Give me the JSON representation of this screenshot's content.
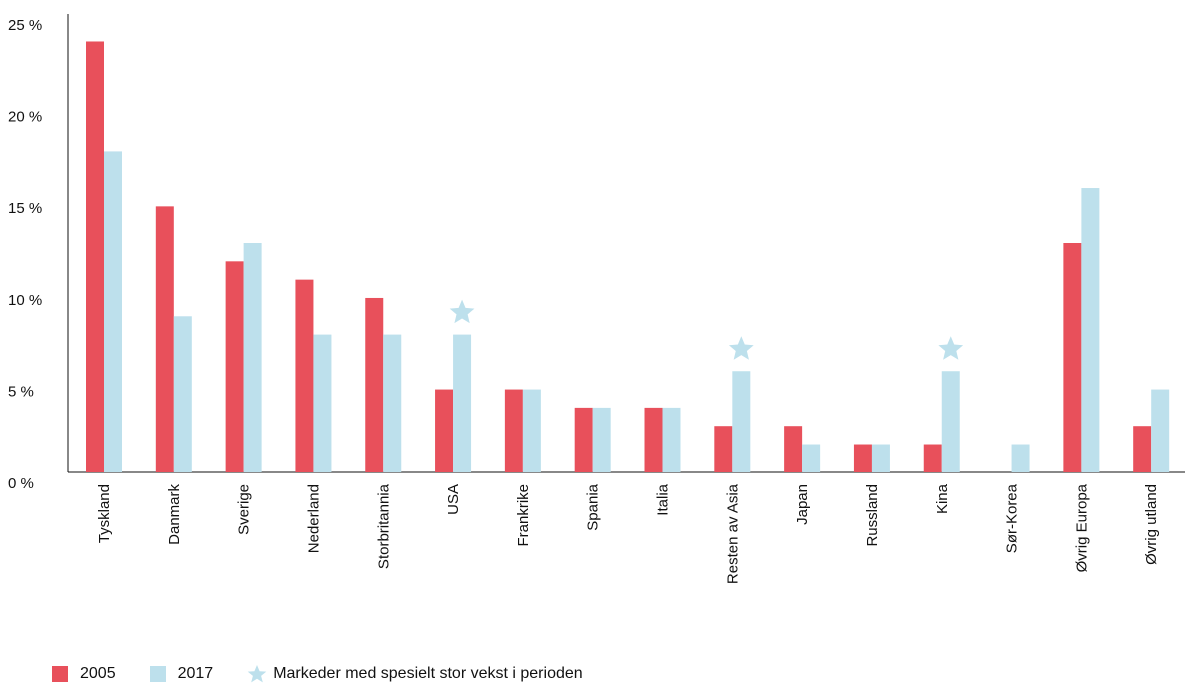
{
  "chart_data": {
    "type": "bar",
    "title": "",
    "xlabel": "",
    "ylabel": "",
    "ylim": [
      0,
      25
    ],
    "yticks": [
      0,
      5,
      10,
      15,
      20,
      25
    ],
    "ytick_labels": [
      "0 %",
      "5 %",
      "10 %",
      "15 %",
      "20 %",
      "25 %"
    ],
    "categories": [
      "Tyskland",
      "Danmark",
      "Sverige",
      "Nederland",
      "Storbritannia",
      "USA",
      "Frankrike",
      "Spania",
      "Italia",
      "Resten av Asia",
      "Japan",
      "Russland",
      "Kina",
      "Sør-Korea",
      "Øvrig Europa",
      "Øvrig utland"
    ],
    "series": [
      {
        "name": "2005",
        "color": "#e8505b",
        "values": [
          23.5,
          14.5,
          11.5,
          10.5,
          9.5,
          4.5,
          4.5,
          3.5,
          3.5,
          2.5,
          2.5,
          1.5,
          1.5,
          0,
          12.5,
          2.5
        ]
      },
      {
        "name": "2017",
        "color": "#bde0ec",
        "values": [
          17.5,
          8.5,
          12.5,
          7.5,
          7.5,
          7.5,
          4.5,
          3.5,
          3.5,
          5.5,
          1.5,
          1.5,
          5.5,
          1.5,
          15.5,
          4.5
        ]
      }
    ],
    "highlighted": [
      "USA",
      "Resten av Asia",
      "Kina"
    ],
    "grid": false,
    "legend_position": "bottom-left"
  },
  "legend": {
    "items": [
      {
        "label": "2005",
        "color": "#e8505b"
      },
      {
        "label": "2017",
        "color": "#bde0ec"
      }
    ],
    "star_label": "Markeder med spesielt stor vekst i perioden",
    "star_color": "#bde0ec"
  }
}
